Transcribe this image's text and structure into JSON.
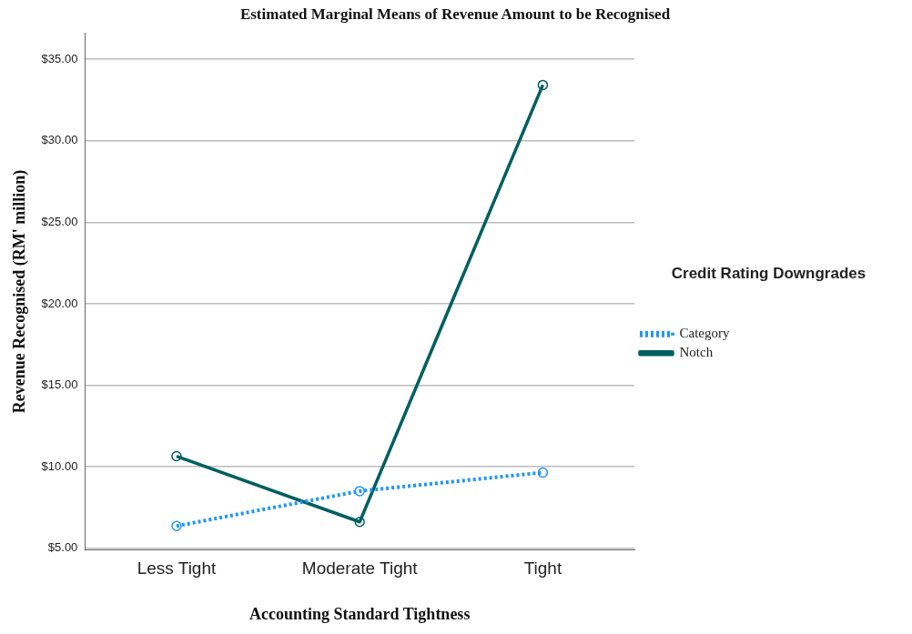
{
  "chart_data": {
    "type": "line",
    "title": "Estimated Marginal Means of Revenue Amount to be Recognised",
    "xlabel": "Accounting Standard Tightness",
    "ylabel": "Revenue Recognised (RM' million)",
    "legend_title": "Credit Rating Downgrades",
    "categories": [
      "Less Tight",
      "Moderate Tight",
      "Tight"
    ],
    "series": [
      {
        "name": "Category",
        "color": "#2196f3",
        "values": [
          6.37,
          8.51,
          9.65
        ],
        "line_style": "dotted"
      },
      {
        "name": "Notch",
        "color": "#005f5f",
        "values": [
          10.65,
          6.62,
          33.42
        ],
        "line_style": "solid"
      }
    ],
    "ylim": [
      4.9,
      36.6
    ],
    "yticks": [
      {
        "value": 5,
        "label": "$5.00"
      },
      {
        "value": 10,
        "label": "$10.00"
      },
      {
        "value": 15,
        "label": "$15.00"
      },
      {
        "value": 20,
        "label": "$20.00"
      },
      {
        "value": 25,
        "label": "$25.00"
      },
      {
        "value": 30,
        "label": "$30.00"
      },
      {
        "value": 35,
        "label": "$35.00"
      }
    ],
    "grid": "y",
    "legend": "right",
    "marker": "circle"
  }
}
